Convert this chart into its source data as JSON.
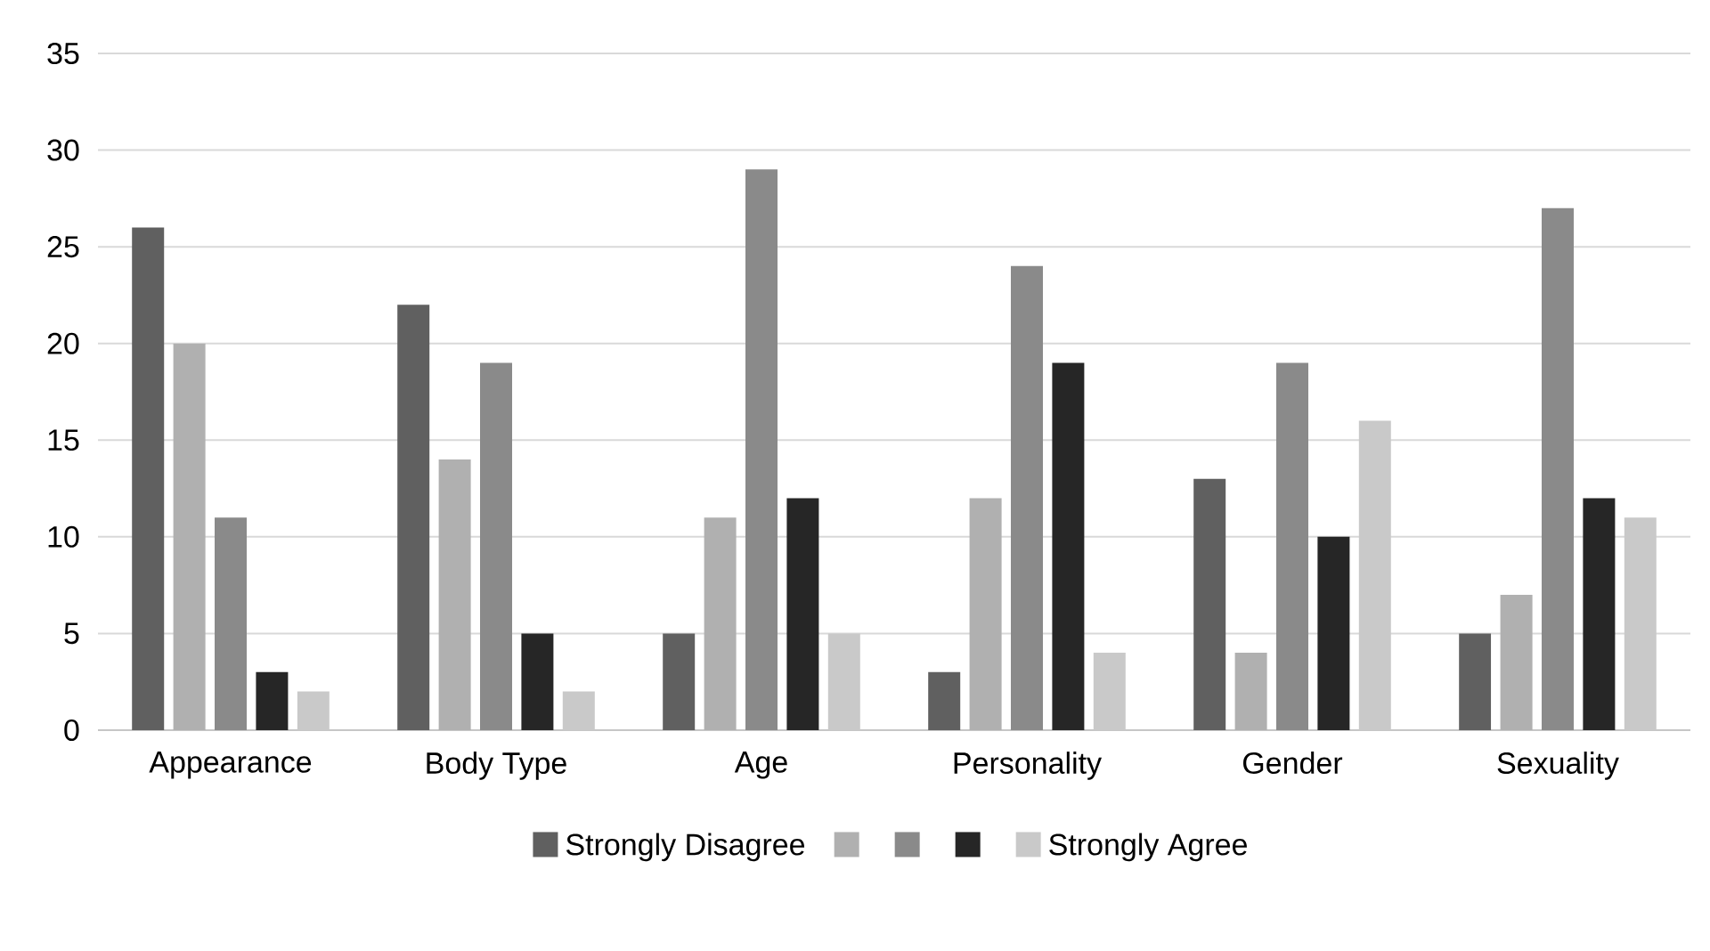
{
  "chart_data": {
    "type": "bar",
    "categories": [
      "Appearance",
      "Body Type",
      "Age",
      "Personality",
      "Gender",
      "Sexuality"
    ],
    "series": [
      {
        "name": "Strongly Disagree",
        "color": "#606060",
        "values": [
          26,
          22,
          5,
          3,
          13,
          5
        ]
      },
      {
        "color": "#b0b0b0",
        "values": [
          20,
          14,
          11,
          12,
          4,
          7
        ]
      },
      {
        "color": "#8a8a8a",
        "values": [
          11,
          19,
          29,
          24,
          19,
          27
        ]
      },
      {
        "color": "#262626",
        "values": [
          3,
          5,
          12,
          19,
          10,
          12
        ]
      },
      {
        "name": "Strongly Agree",
        "color": "#c9c9c9",
        "values": [
          2,
          2,
          5,
          4,
          16,
          11
        ]
      }
    ],
    "ylim": [
      0,
      35
    ],
    "yticks": [
      0,
      5,
      10,
      15,
      20,
      25,
      30,
      35
    ],
    "grid": "y",
    "legend": "bottom"
  }
}
